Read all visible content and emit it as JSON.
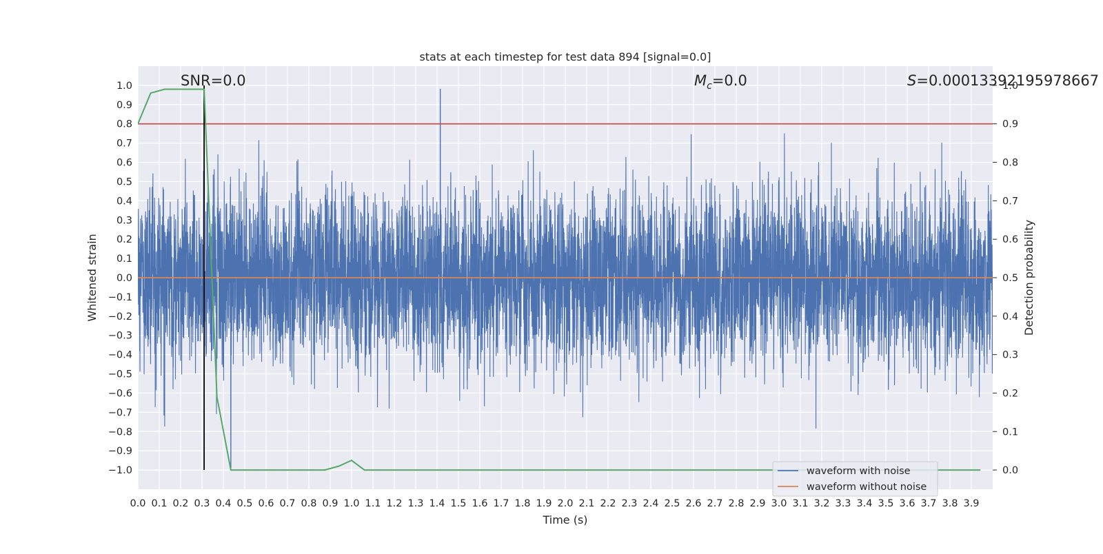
{
  "chart_data": {
    "type": "line",
    "title": "stats at each timestep for test data 894 [signal=0.0]",
    "xlabel": "Time (s)",
    "ylabel": "Whitened strain",
    "y2label": "Detection probability",
    "xlim": [
      0.0,
      4.0
    ],
    "ylim": [
      -1.1,
      1.1
    ],
    "y2lim": [
      -0.05,
      1.05
    ],
    "x_ticks": [
      "0.0",
      "0.1",
      "0.2",
      "0.3",
      "0.4",
      "0.5",
      "0.6",
      "0.7",
      "0.8",
      "0.9",
      "1.0",
      "1.1",
      "1.2",
      "1.3",
      "1.4",
      "1.5",
      "1.6",
      "1.7",
      "1.8",
      "1.9",
      "2.0",
      "2.1",
      "2.2",
      "2.3",
      "2.4",
      "2.5",
      "2.6",
      "2.7",
      "2.8",
      "2.9",
      "3.0",
      "3.1",
      "3.2",
      "3.3",
      "3.4",
      "3.5",
      "3.6",
      "3.7",
      "3.8",
      "3.9"
    ],
    "y_ticks": [
      "1.0",
      "0.9",
      "0.8",
      "0.7",
      "0.6",
      "0.5",
      "0.4",
      "0.3",
      "0.2",
      "0.1",
      "0.0",
      "−0.1",
      "−0.2",
      "−0.3",
      "−0.4",
      "−0.5",
      "−0.6",
      "−0.7",
      "−0.8",
      "−0.9",
      "−1.0"
    ],
    "y2_ticks": [
      "1.0",
      "0.9",
      "0.8",
      "0.7",
      "0.6",
      "0.5",
      "0.4",
      "0.3",
      "0.2",
      "0.1",
      "0.0"
    ],
    "grid": true,
    "legend_position": "lower-right",
    "annotations": {
      "snr": "SNR=0.0",
      "mc_symbol": "M",
      "mc_sub": "c",
      "mc_value": "=0.0",
      "s_symbol": "S",
      "s_value": "=0.00013392195978667"
    },
    "series": [
      {
        "name": "waveform with noise",
        "axis": "left",
        "color": "#4c72b0",
        "sample_rate": 2048,
        "amplitude_std": 0.2,
        "peak_max": [
          1.415,
          0.98
        ],
        "peak_min": [
          0.435,
          -0.99
        ]
      },
      {
        "name": "waveform without noise",
        "axis": "left",
        "color": "#dd8452",
        "constant": 0.0
      },
      {
        "axis": "right",
        "color": "#55a868",
        "x": [
          0.0,
          0.06,
          0.125,
          0.19,
          0.25,
          0.31,
          0.37,
          0.435,
          0.5,
          0.56,
          0.62,
          0.69,
          0.75,
          0.81,
          0.875,
          0.94,
          1.0,
          1.06,
          1.12,
          1.5,
          2.0,
          2.5,
          3.0,
          3.5,
          3.94
        ],
        "y": [
          0.9,
          0.98,
          0.99,
          0.99,
          0.99,
          0.99,
          0.19,
          0.0,
          0.0,
          0.0,
          0.0,
          0.0,
          0.0,
          0.0,
          0.0,
          0.01,
          0.025,
          0.0,
          0.0,
          0.0,
          0.0,
          0.0,
          0.0,
          0.0,
          0.0
        ]
      },
      {
        "axis": "right",
        "color": "#c44e52",
        "type": "threshold",
        "constant": 0.9
      },
      {
        "color": "#000000",
        "type": "vertical-marker",
        "x": 0.31,
        "y_range": [
          -1.0,
          1.0
        ]
      }
    ]
  }
}
